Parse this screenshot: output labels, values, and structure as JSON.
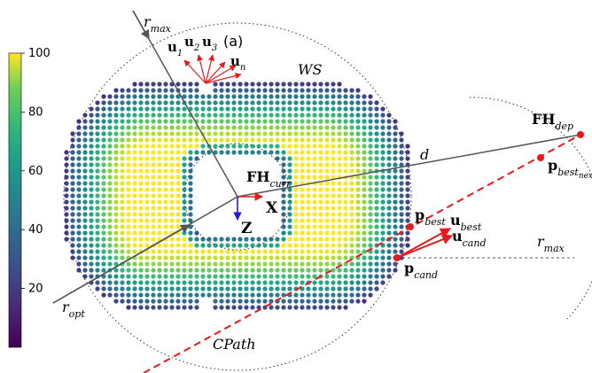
{
  "figure": {
    "panel_label": "(a)",
    "colorbar": {
      "ticks": [
        "100",
        "80",
        "60",
        "40",
        "20"
      ],
      "min": 0,
      "max": 100,
      "colormap": "viridis"
    },
    "labels": {
      "r_max_top": {
        "main": "r",
        "sub": "max"
      },
      "r_max_right": {
        "main": "r",
        "sub": "max"
      },
      "r_opt": {
        "main": "r",
        "sub": "opt"
      },
      "ws": "WS",
      "cpath": "CPath",
      "d": "d",
      "fh_curr": {
        "main": "FH",
        "sub": "curr"
      },
      "fh_dep": {
        "main": "FH",
        "sub": "dep"
      },
      "x_axis": "X",
      "z_axis": "Z",
      "p_best": {
        "main": "p",
        "sub": "best"
      },
      "p_best_next": {
        "main": "p",
        "sub": "best",
        "subsub": "next"
      },
      "p_cand": {
        "main": "p",
        "sub": "cand"
      },
      "u_best": {
        "main": "u",
        "sub": "best"
      },
      "u_cand": {
        "main": "u",
        "sub": "cand"
      },
      "u1": {
        "main": "u",
        "sub": "1"
      },
      "u2": {
        "main": "u",
        "sub": "2"
      },
      "u3": {
        "main": "u",
        "sub": "3"
      },
      "un": {
        "main": "u",
        "sub": "n"
      }
    },
    "colors": {
      "red": "#e41a1c",
      "axis_blue": "#1f1fd6",
      "line_gray": "#555555"
    }
  }
}
